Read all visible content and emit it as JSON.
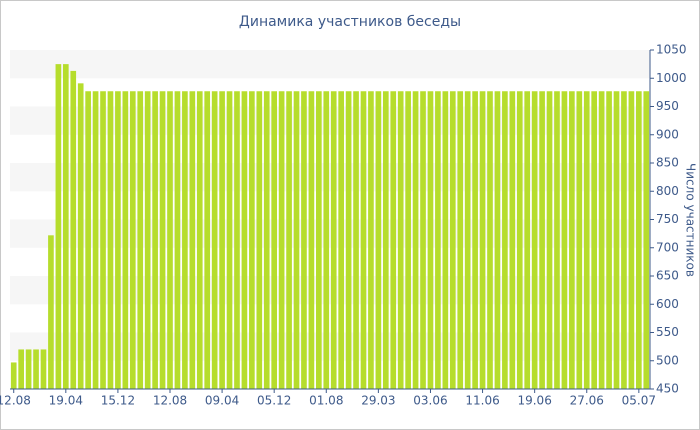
{
  "chart_data": {
    "type": "bar",
    "title": "Динамика участников беседы",
    "y_label": "Число участников",
    "categories": [
      "12.08",
      null,
      null,
      null,
      null,
      null,
      null,
      "19.04",
      null,
      null,
      null,
      null,
      null,
      null,
      "15.12",
      null,
      null,
      null,
      null,
      null,
      null,
      "12.08",
      null,
      null,
      null,
      null,
      null,
      null,
      "09.04",
      null,
      null,
      null,
      null,
      null,
      null,
      "05.12",
      null,
      null,
      null,
      null,
      null,
      null,
      "01.08",
      null,
      null,
      null,
      null,
      null,
      null,
      "29.03",
      null,
      null,
      null,
      null,
      null,
      null,
      "03.06",
      null,
      null,
      null,
      null,
      null,
      null,
      "11.06",
      null,
      null,
      null,
      null,
      null,
      null,
      "19.06",
      null,
      null,
      null,
      null,
      null,
      null,
      "27.06",
      null,
      null,
      null,
      null,
      null,
      null,
      "05.07",
      null
    ],
    "values": [
      497,
      520,
      520,
      520,
      520,
      722,
      1025,
      1025,
      1013,
      991,
      977,
      977,
      977,
      977,
      977,
      977,
      977,
      977,
      977,
      977,
      977,
      977,
      977,
      977,
      977,
      977,
      977,
      977,
      977,
      977,
      977,
      977,
      977,
      977,
      977,
      977,
      977,
      977,
      977,
      977,
      977,
      977,
      977,
      977,
      977,
      977,
      977,
      977,
      977,
      977,
      977,
      977,
      977,
      977,
      977,
      977,
      977,
      977,
      977,
      977,
      977,
      977,
      977,
      977,
      977,
      977,
      977,
      977,
      977,
      977,
      977,
      977,
      977,
      977,
      977,
      977,
      977,
      977,
      977,
      977,
      977,
      977,
      977,
      977,
      977,
      977
    ],
    "color": "#b6dd2c",
    "ylim": [
      450,
      1050
    ],
    "yticks": [
      450,
      500,
      550,
      600,
      650,
      700,
      750,
      800,
      850,
      900,
      950,
      1000,
      1050
    ],
    "grid": true
  }
}
